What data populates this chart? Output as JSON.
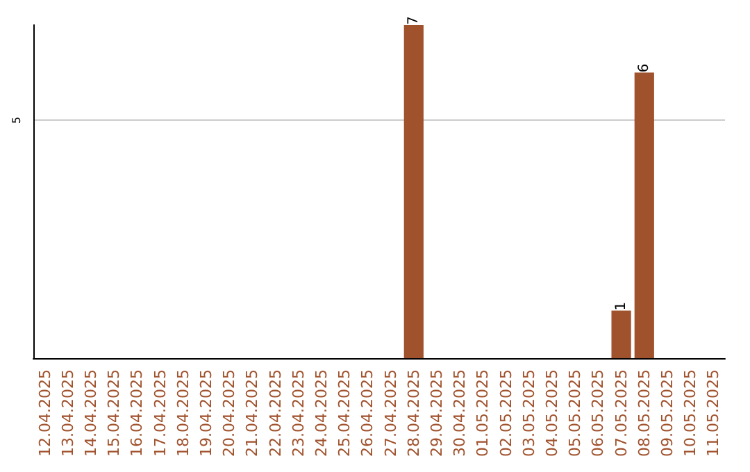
{
  "chart_data": {
    "type": "bar",
    "categories": [
      "12.04.2025",
      "13.04.2025",
      "14.04.2025",
      "15.04.2025",
      "16.04.2025",
      "17.04.2025",
      "18.04.2025",
      "19.04.2025",
      "20.04.2025",
      "21.04.2025",
      "22.04.2025",
      "23.04.2025",
      "24.04.2025",
      "25.04.2025",
      "26.04.2025",
      "27.04.2025",
      "28.04.2025",
      "29.04.2025",
      "30.04.2025",
      "01.05.2025",
      "02.05.2025",
      "03.05.2025",
      "04.05.2025",
      "05.05.2025",
      "06.05.2025",
      "07.05.2025",
      "08.05.2025",
      "09.05.2025",
      "10.05.2025",
      "11.05.2025"
    ],
    "values": [
      null,
      null,
      null,
      null,
      null,
      null,
      null,
      null,
      null,
      null,
      null,
      null,
      null,
      null,
      null,
      null,
      7,
      null,
      null,
      null,
      null,
      null,
      null,
      null,
      null,
      1,
      6,
      null,
      null,
      null
    ],
    "color": "#a0522d",
    "ylim": [
      0,
      7
    ],
    "yticks": [
      5
    ],
    "grid": "y",
    "data_labels": true
  }
}
